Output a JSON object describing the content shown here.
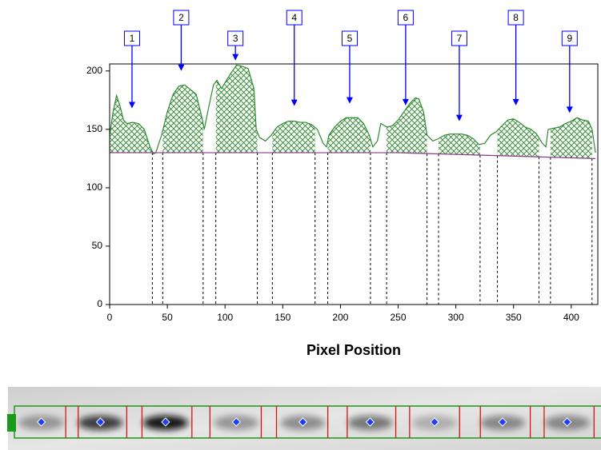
{
  "chart_data": {
    "type": "area",
    "x_label": "Pixel Position",
    "xlim": [
      0,
      423
    ],
    "ylim": [
      0,
      206
    ],
    "xticks": [
      0,
      50,
      100,
      150,
      200,
      250,
      300,
      350,
      400
    ],
    "yticks": [
      0,
      50,
      100,
      150,
      200
    ],
    "profile": {
      "color": "#2e8b2e",
      "x": [
        0,
        3,
        6,
        9,
        12,
        15,
        20,
        25,
        30,
        35,
        38,
        40,
        45,
        50,
        55,
        60,
        65,
        70,
        75,
        80,
        82,
        85,
        90,
        93,
        97,
        100,
        105,
        110,
        115,
        120,
        125,
        127,
        130,
        135,
        140,
        145,
        150,
        155,
        160,
        165,
        170,
        175,
        180,
        185,
        188,
        190,
        195,
        200,
        205,
        210,
        215,
        220,
        225,
        228,
        232,
        235,
        240,
        245,
        250,
        255,
        260,
        265,
        268,
        272,
        275,
        280,
        285,
        290,
        295,
        300,
        305,
        310,
        315,
        320,
        325,
        330,
        335,
        340,
        345,
        350,
        355,
        360,
        365,
        370,
        375,
        378,
        380,
        385,
        390,
        395,
        400,
        405,
        410,
        415,
        418,
        421
      ],
      "y": [
        145,
        165,
        179,
        170,
        158,
        155,
        156,
        155,
        150,
        135,
        129,
        130,
        145,
        165,
        180,
        187,
        188,
        184,
        180,
        160,
        150,
        165,
        188,
        192,
        185,
        190,
        198,
        205,
        204,
        202,
        185,
        150,
        143,
        140,
        145,
        152,
        155,
        157,
        157,
        156,
        156,
        154,
        150,
        138,
        135,
        145,
        152,
        157,
        160,
        160,
        160,
        155,
        145,
        135,
        140,
        155,
        152,
        153,
        158,
        165,
        172,
        177,
        176,
        165,
        145,
        140,
        142,
        145,
        146,
        146,
        146,
        145,
        142,
        137,
        138,
        145,
        148,
        153,
        158,
        159,
        156,
        152,
        150,
        146,
        138,
        135,
        150,
        151,
        152,
        155,
        157,
        160,
        158,
        157,
        150,
        130
      ]
    },
    "baseline": {
      "color": "#8b3a8b",
      "x": [
        0,
        250,
        421
      ],
      "y": [
        130,
        130,
        125
      ]
    },
    "arrow_color": "#0000ff",
    "peaks": [
      {
        "label": "1",
        "start": 0,
        "end": 37,
        "arrow_x": 19.4,
        "arrow_y": 168
      },
      {
        "label": "2",
        "start": 46,
        "end": 81,
        "arrow_x": 62,
        "arrow_y": 200
      },
      {
        "label": "3",
        "start": 92,
        "end": 128,
        "arrow_x": 109,
        "arrow_y": 209
      },
      {
        "label": "4",
        "start": 141,
        "end": 178,
        "arrow_x": 160,
        "arrow_y": 170
      },
      {
        "label": "5",
        "start": 189,
        "end": 226,
        "arrow_x": 208,
        "arrow_y": 172
      },
      {
        "label": "6",
        "start": 240,
        "end": 275,
        "arrow_x": 256.5,
        "arrow_y": 170.5
      },
      {
        "label": "7",
        "start": 285,
        "end": 321,
        "arrow_x": 303,
        "arrow_y": 157
      },
      {
        "label": "8",
        "start": 336,
        "end": 372,
        "arrow_x": 352,
        "arrow_y": 170.5
      },
      {
        "label": "9",
        "start": 382,
        "end": 418,
        "arrow_x": 398.6,
        "arrow_y": 164
      }
    ]
  }
}
